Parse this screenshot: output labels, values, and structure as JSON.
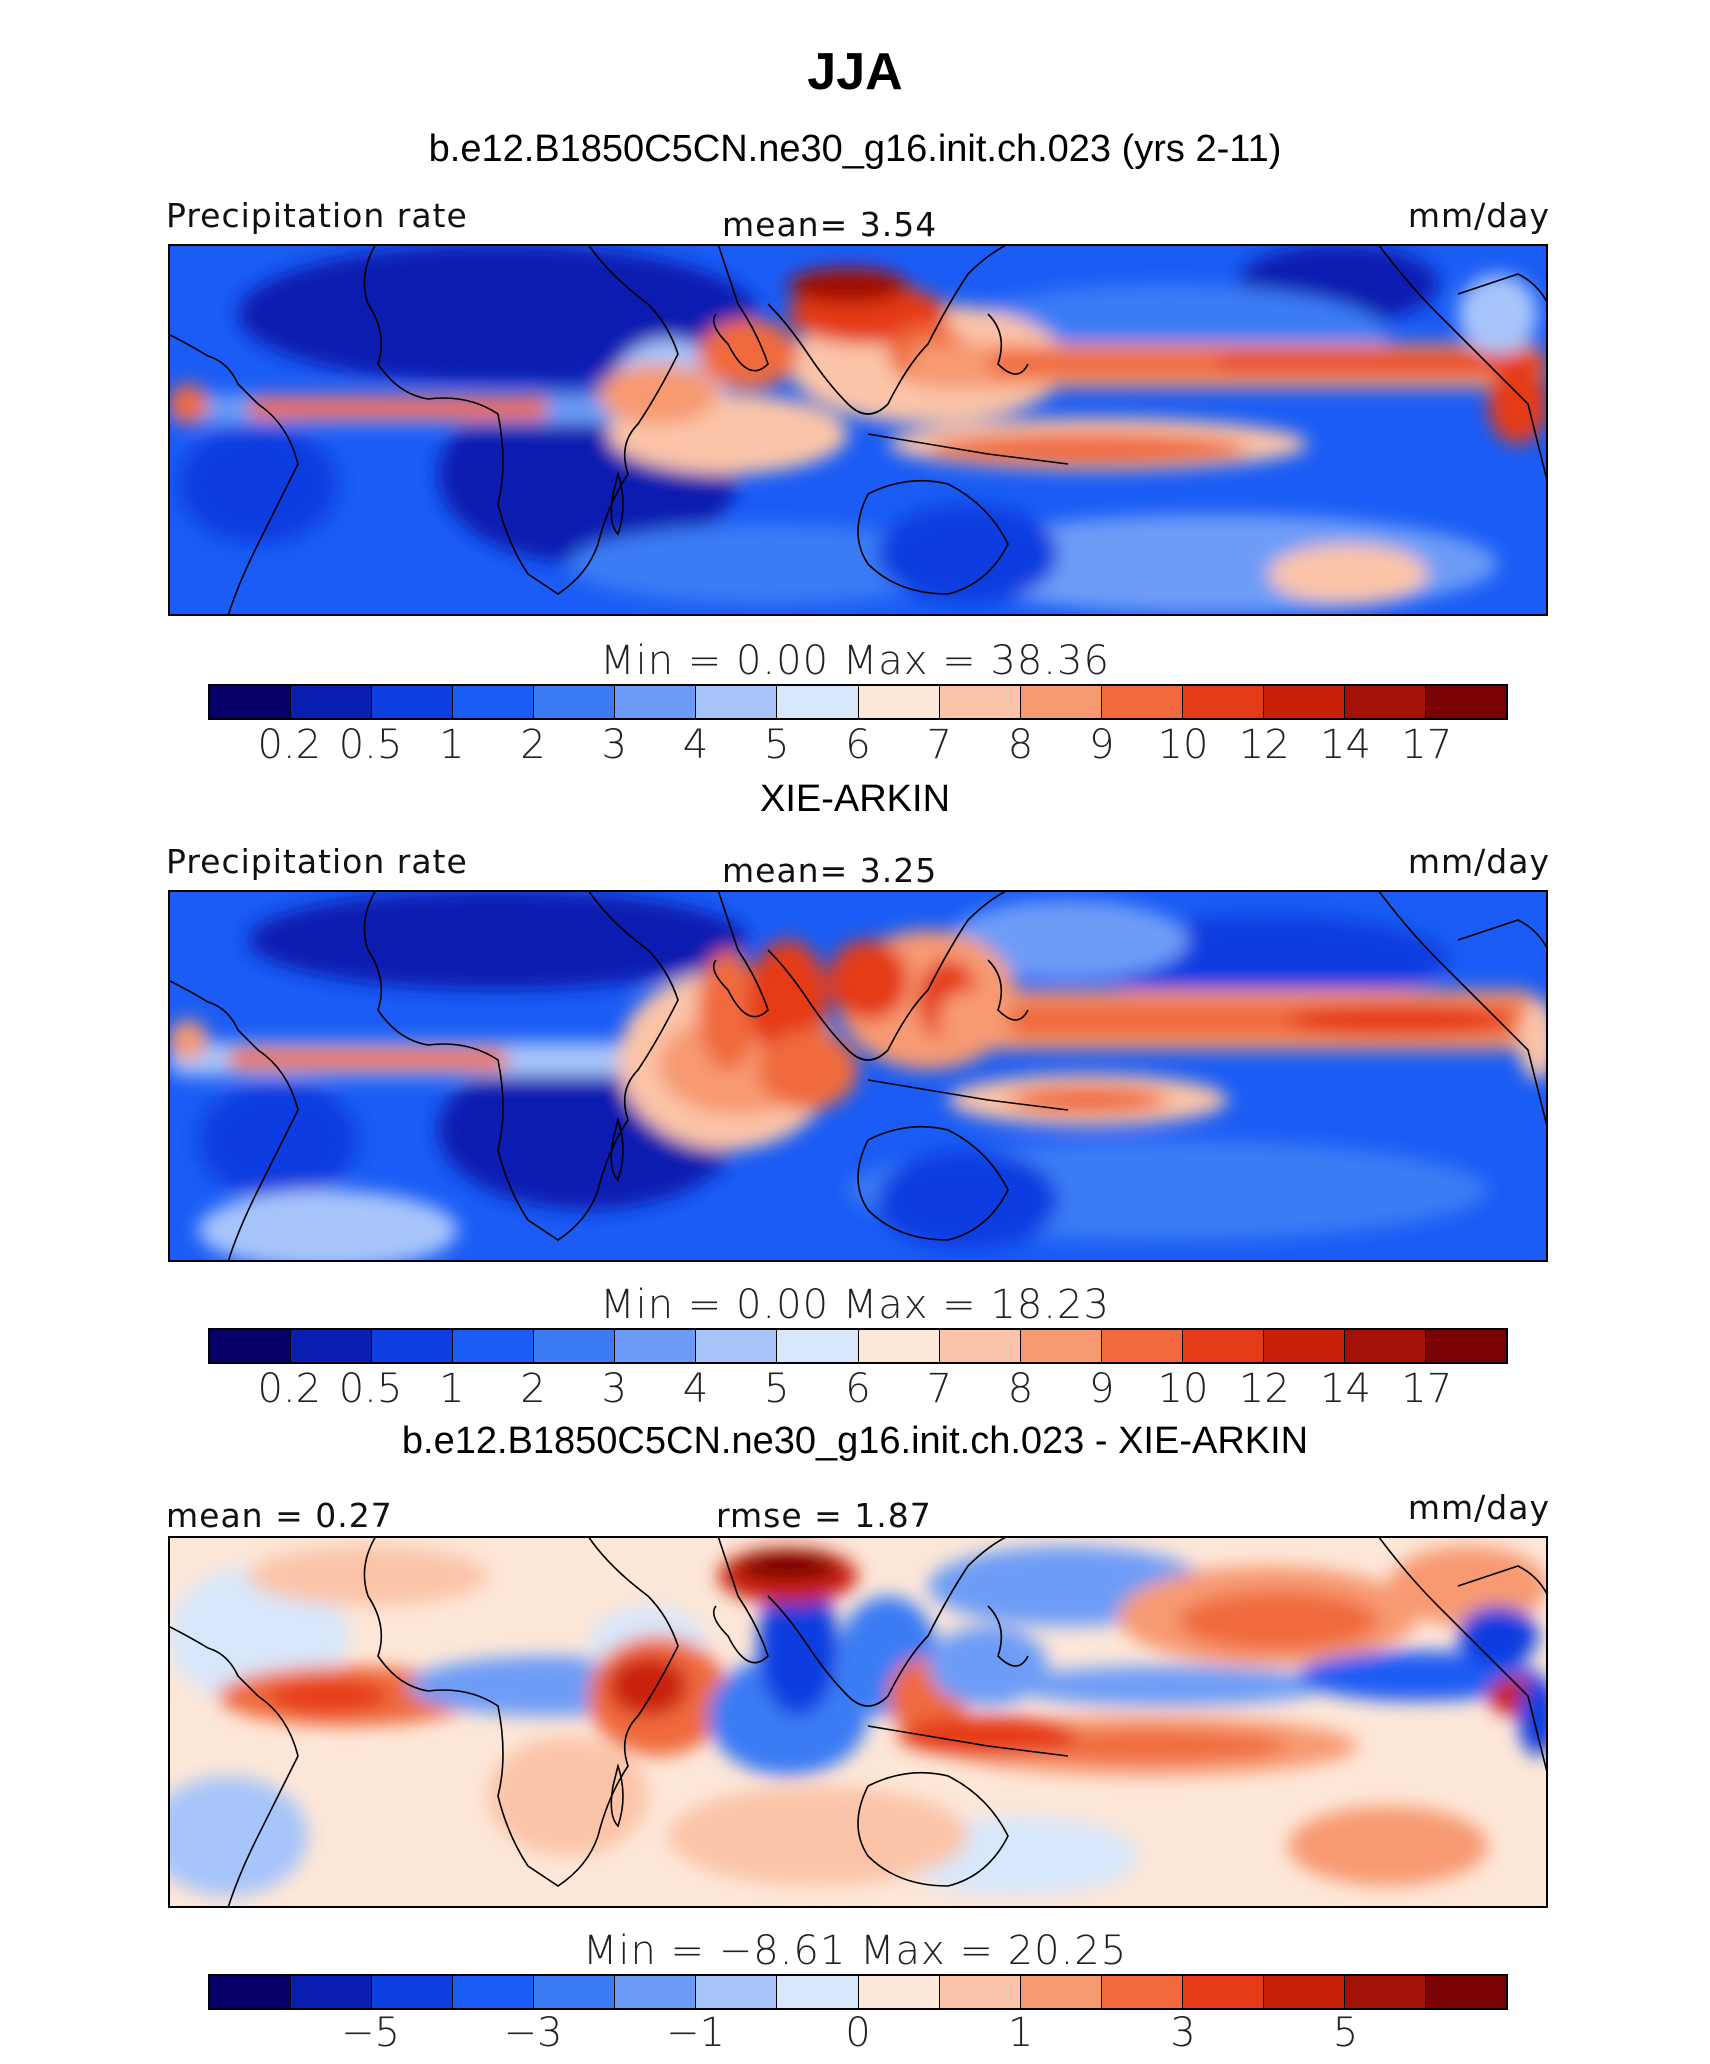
{
  "figure": {
    "title": "JJA",
    "colors": [
      "#08006a",
      "#0a1fb0",
      "#0d3ee0",
      "#1a5cf5",
      "#3b7cf5",
      "#6d9cf7",
      "#a7c5fa",
      "#d8e7fb",
      "#fde7d8",
      "#fbc4a8",
      "#f79a72",
      "#f06a3d",
      "#e53b17",
      "#c92108",
      "#a31006",
      "#7a0202"
    ]
  },
  "panels": [
    {
      "subtitle": "b.e12.B1850C5CN.ne30_g16.init.ch.023 (yrs 2-11)",
      "left_label": "Precipitation rate",
      "center_label": "mean=    3.54",
      "right_label": "mm/day",
      "minmax": "Min  =    0.00  Max  =   38.36",
      "cb_labels": [
        "0.2",
        "0.5",
        "1",
        "2",
        "3",
        "4",
        "5",
        "6",
        "7",
        "8",
        "9",
        "10",
        "12",
        "14",
        "17"
      ]
    },
    {
      "subtitle": "XIE-ARKIN",
      "left_label": "Precipitation rate",
      "center_label": "mean=    3.25",
      "right_label": "mm/day",
      "minmax": "Min  =    0.00  Max  =   18.23",
      "cb_labels": [
        "0.2",
        "0.5",
        "1",
        "2",
        "3",
        "4",
        "5",
        "6",
        "7",
        "8",
        "9",
        "10",
        "12",
        "14",
        "17"
      ]
    },
    {
      "subtitle": "b.e12.B1850C5CN.ne30_g16.init.ch.023 - XIE-ARKIN",
      "left_label": "mean  =    0.27",
      "center_label": "rmse  =    1.87",
      "right_label": "mm/day",
      "minmax": "Min  =   −8.61  Max  =   20.25",
      "cb_labels": [
        "",
        "−5",
        "",
        "−3",
        "",
        "−1",
        "",
        "0",
        "",
        "1",
        "",
        "3",
        "",
        "5",
        ""
      ]
    }
  ]
}
